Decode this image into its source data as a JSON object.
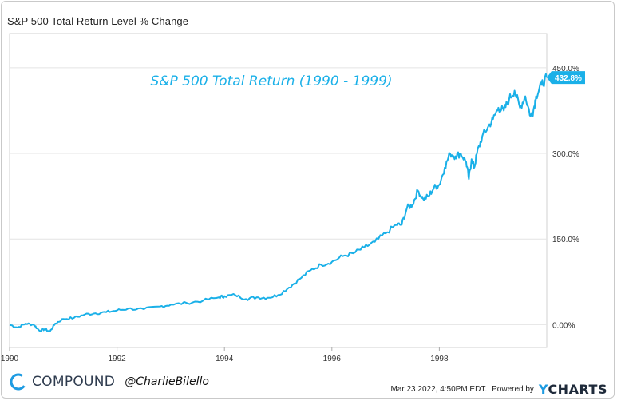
{
  "header": {
    "title": "S&P 500 Total Return Level % Change"
  },
  "annotation": "S&P 500 Total Return (1990 - 1999)",
  "chart_data": {
    "type": "line",
    "x_ticks": [
      "1990",
      "1992",
      "1994",
      "1996",
      "1998"
    ],
    "y_ticks": [
      "0.00%",
      "150.0%",
      "300.0%",
      "450.0%"
    ],
    "xlim": [
      1990.0,
      2000.0
    ],
    "ylim": [
      -40,
      510
    ],
    "last_value_label": "432.8%",
    "line_color": "#1ab0e8",
    "grid": true,
    "series": [
      {
        "x": [
          1990.0,
          1990.15,
          1990.3,
          1990.45,
          1990.55,
          1990.65,
          1990.75,
          1990.85,
          1991.0,
          1991.2,
          1991.4,
          1991.6,
          1991.8,
          1992.0,
          1992.2,
          1992.5,
          1992.8,
          1993.0,
          1993.3,
          1993.6,
          1993.9,
          1994.0,
          1994.2,
          1994.4,
          1994.6,
          1994.8,
          1995.0,
          1995.2,
          1995.4,
          1995.6,
          1995.8,
          1996.0,
          1996.2,
          1996.4,
          1996.6,
          1996.8,
          1997.0,
          1997.2,
          1997.3,
          1997.4,
          1997.5,
          1997.6,
          1997.7,
          1997.8,
          1997.9,
          1998.0,
          1998.1,
          1998.2,
          1998.3,
          1998.4,
          1998.5,
          1998.55,
          1998.6,
          1998.65,
          1998.7,
          1998.8,
          1998.9,
          1999.0,
          1999.1,
          1999.2,
          1999.3,
          1999.4,
          1999.5,
          1999.6,
          1999.7,
          1999.75,
          1999.8,
          1999.9,
          2000.0
        ],
        "values": [
          0,
          -5,
          2,
          0,
          -10,
          -8,
          -12,
          2,
          10,
          12,
          18,
          20,
          22,
          25,
          28,
          27,
          32,
          35,
          38,
          42,
          48,
          50,
          52,
          45,
          48,
          47,
          52,
          65,
          80,
          95,
          105,
          110,
          120,
          125,
          135,
          145,
          160,
          175,
          175,
          205,
          210,
          235,
          220,
          225,
          240,
          245,
          275,
          300,
          295,
          300,
          285,
          255,
          290,
          275,
          300,
          330,
          345,
          360,
          380,
          375,
          395,
          410,
          380,
          400,
          365,
          375,
          400,
          420,
          432.8
        ]
      }
    ]
  },
  "footer": {
    "brand": "COMPOUND",
    "handle": "@CharlieBilello",
    "timestamp": "Mar 23 2022, 4:50PM EDT.",
    "powered_by": "Powered by",
    "provider_y": "Y",
    "provider_rest": "CHARTS"
  }
}
